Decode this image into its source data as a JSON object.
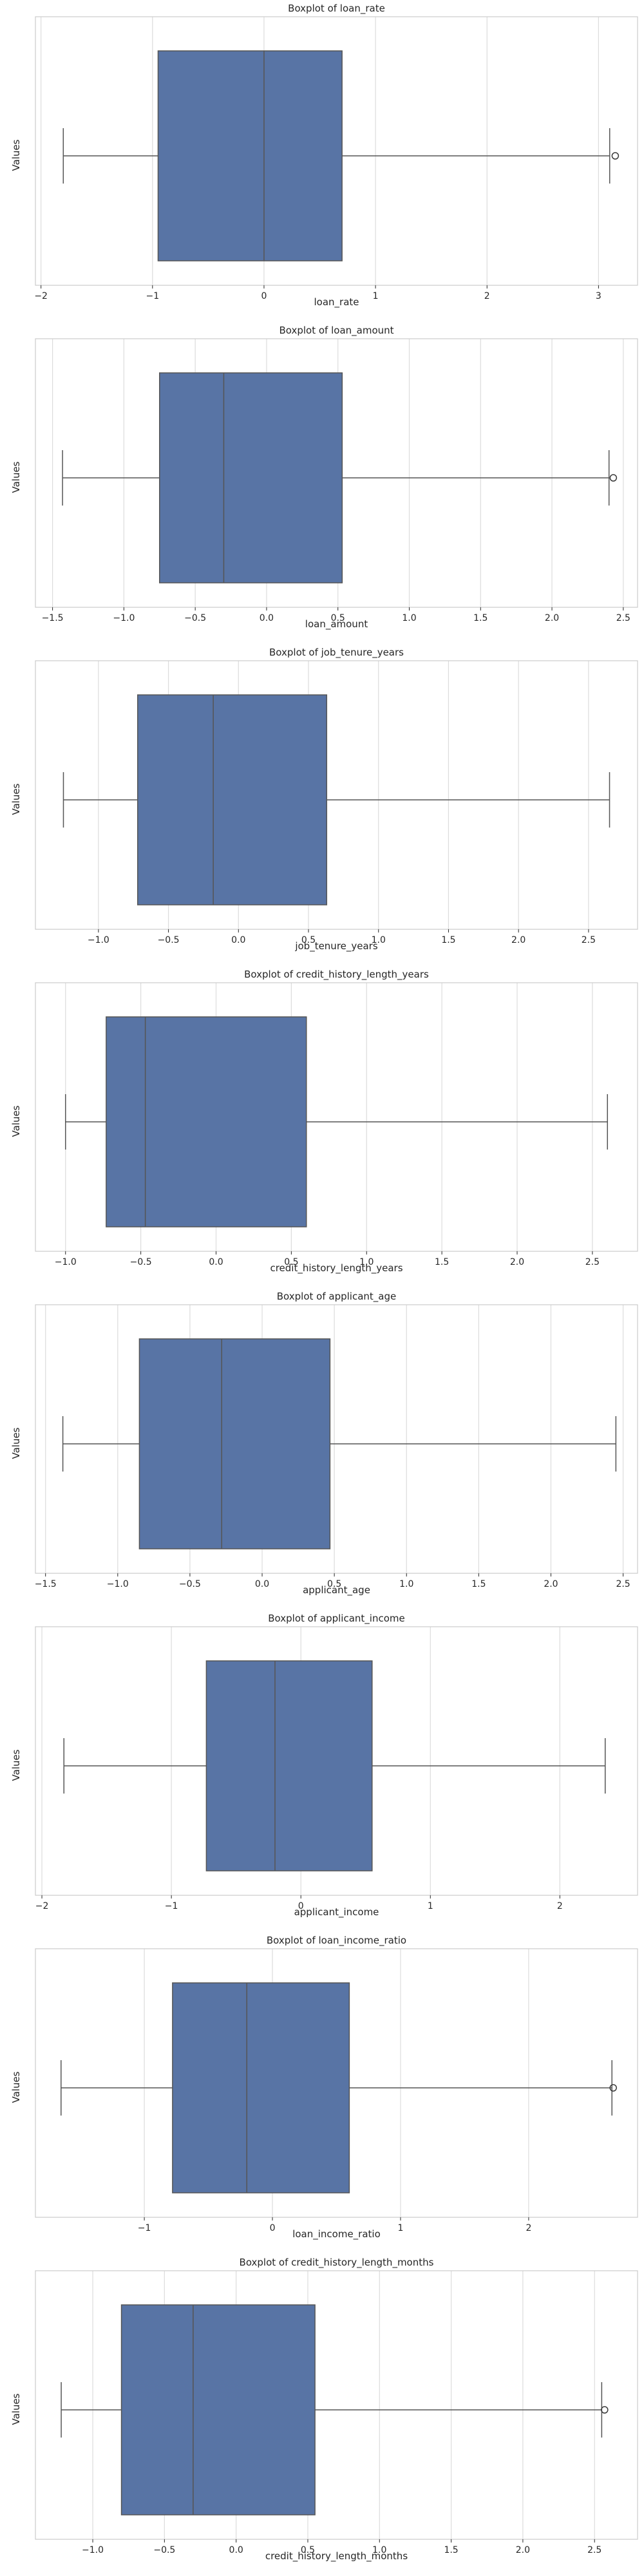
{
  "colors": {
    "box": "#5874a5",
    "line": "#555555",
    "grid": "#dcdcdc",
    "frame": "#cccccc",
    "text": "#262626"
  },
  "chart_data": [
    {
      "type": "boxplot",
      "title": "Boxplot of loan_rate",
      "xlabel": "loan_rate",
      "ylabel": "Values",
      "xlim": [
        -2.05,
        3.35
      ],
      "xticks": [
        -2,
        -1,
        0,
        1,
        2,
        3
      ],
      "xtick_labels": [
        "−2",
        "−1",
        "0",
        "1",
        "2",
        "3"
      ],
      "grid": true,
      "orientation": "horizontal",
      "stats": {
        "whislo": -1.8,
        "q1": -0.95,
        "median": 0.0,
        "q3": 0.7,
        "whishi": 3.1
      },
      "outliers": [
        3.15
      ]
    },
    {
      "type": "boxplot",
      "title": "Boxplot of loan_amount",
      "xlabel": "loan_amount",
      "ylabel": "Values",
      "xlim": [
        -1.62,
        2.6
      ],
      "xticks": [
        -1.5,
        -1.0,
        -0.5,
        0.0,
        0.5,
        1.0,
        1.5,
        2.0,
        2.5
      ],
      "xtick_labels": [
        "−1.5",
        "−1.0",
        "−0.5",
        "0.0",
        "0.5",
        "1.0",
        "1.5",
        "2.0",
        "2.5"
      ],
      "grid": true,
      "orientation": "horizontal",
      "stats": {
        "whislo": -1.43,
        "q1": -0.75,
        "median": -0.3,
        "q3": 0.53,
        "whishi": 2.4
      },
      "outliers": [
        2.43
      ]
    },
    {
      "type": "boxplot",
      "title": "Boxplot of job_tenure_years",
      "xlabel": "job_tenure_years",
      "ylabel": "Values",
      "xlim": [
        -1.45,
        2.85
      ],
      "xticks": [
        -1.0,
        -0.5,
        0.0,
        0.5,
        1.0,
        1.5,
        2.0,
        2.5
      ],
      "xtick_labels": [
        "−1.0",
        "−0.5",
        "0.0",
        "0.5",
        "1.0",
        "1.5",
        "2.0",
        "2.5"
      ],
      "grid": true,
      "orientation": "horizontal",
      "stats": {
        "whislo": -1.25,
        "q1": -0.72,
        "median": -0.18,
        "q3": 0.63,
        "whishi": 2.65
      },
      "outliers": []
    },
    {
      "type": "boxplot",
      "title": "Boxplot of credit_history_length_years",
      "xlabel": "credit_history_length_years",
      "ylabel": "Values",
      "xlim": [
        -1.2,
        2.8
      ],
      "xticks": [
        -1.0,
        -0.5,
        0.0,
        0.5,
        1.0,
        1.5,
        2.0,
        2.5
      ],
      "xtick_labels": [
        "−1.0",
        "−0.5",
        "0.0",
        "0.5",
        "1.0",
        "1.5",
        "2.0",
        "2.5"
      ],
      "grid": true,
      "orientation": "horizontal",
      "stats": {
        "whislo": -1.0,
        "q1": -0.73,
        "median": -0.47,
        "q3": 0.6,
        "whishi": 2.6
      },
      "outliers": []
    },
    {
      "type": "boxplot",
      "title": "Boxplot of applicant_age",
      "xlabel": "applicant_age",
      "ylabel": "Values",
      "xlim": [
        -1.57,
        2.6
      ],
      "xticks": [
        -1.5,
        -1.0,
        -0.5,
        0.0,
        0.5,
        1.0,
        1.5,
        2.0,
        2.5
      ],
      "xtick_labels": [
        "−1.5",
        "−1.0",
        "−0.5",
        "0.0",
        "0.5",
        "1.0",
        "1.5",
        "2.0",
        "2.5"
      ],
      "grid": true,
      "orientation": "horizontal",
      "stats": {
        "whislo": -1.38,
        "q1": -0.85,
        "median": -0.28,
        "q3": 0.47,
        "whishi": 2.45
      },
      "outliers": []
    },
    {
      "type": "boxplot",
      "title": "Boxplot of applicant_income",
      "xlabel": "applicant_income",
      "ylabel": "Values",
      "xlim": [
        -2.05,
        2.6
      ],
      "xticks": [
        -2,
        -1,
        0,
        1,
        2
      ],
      "xtick_labels": [
        "−2",
        "−1",
        "0",
        "1",
        "2"
      ],
      "grid": true,
      "orientation": "horizontal",
      "stats": {
        "whislo": -1.83,
        "q1": -0.73,
        "median": -0.2,
        "q3": 0.55,
        "whishi": 2.35
      },
      "outliers": []
    },
    {
      "type": "boxplot",
      "title": "Boxplot of loan_income_ratio",
      "xlabel": "loan_income_ratio",
      "ylabel": "Values",
      "xlim": [
        -1.85,
        2.85
      ],
      "xticks": [
        -1,
        0,
        1,
        2
      ],
      "xtick_labels": [
        "−1",
        "0",
        "1",
        "2"
      ],
      "grid": true,
      "orientation": "horizontal",
      "stats": {
        "whislo": -1.65,
        "q1": -0.78,
        "median": -0.2,
        "q3": 0.6,
        "whishi": 2.65
      },
      "outliers": [
        2.66
      ]
    },
    {
      "type": "boxplot",
      "title": "Boxplot of credit_history_length_months",
      "xlabel": "credit_history_length_months",
      "ylabel": "Values",
      "xlim": [
        -1.4,
        2.8
      ],
      "xticks": [
        -1.0,
        -0.5,
        0.0,
        0.5,
        1.0,
        1.5,
        2.0,
        2.5
      ],
      "xtick_labels": [
        "−1.0",
        "−0.5",
        "0.0",
        "0.5",
        "1.0",
        "1.5",
        "2.0",
        "2.5"
      ],
      "grid": true,
      "orientation": "horizontal",
      "stats": {
        "whislo": -1.22,
        "q1": -0.8,
        "median": -0.3,
        "q3": 0.55,
        "whishi": 2.55
      },
      "outliers": [
        2.57
      ]
    }
  ]
}
